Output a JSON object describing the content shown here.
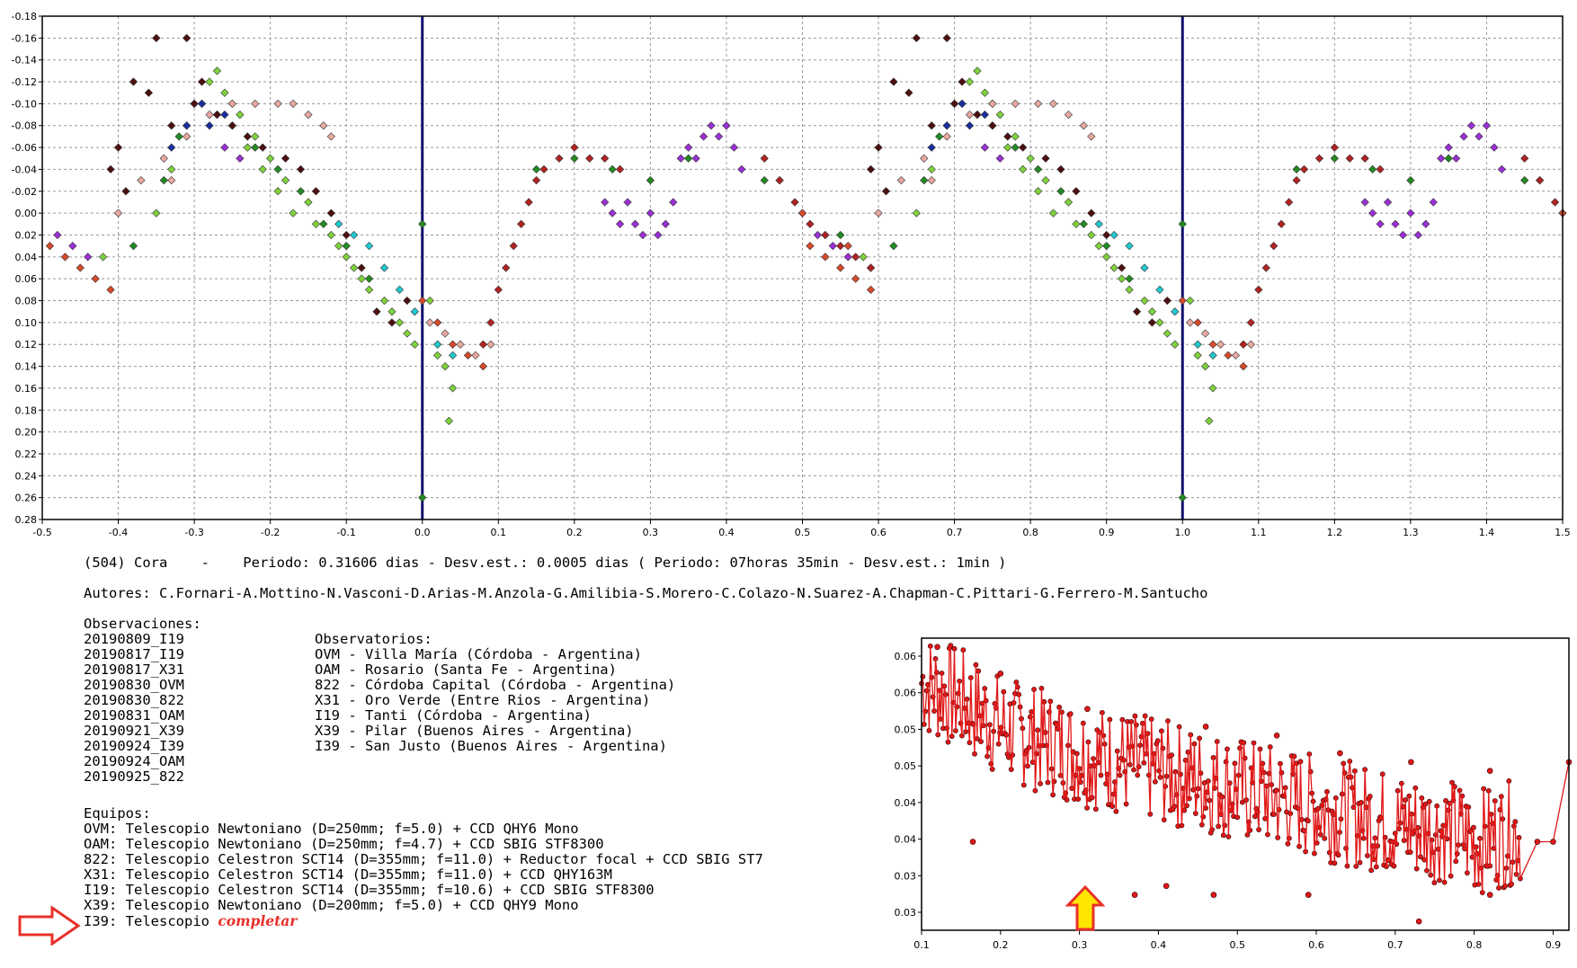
{
  "chart_data": [
    {
      "type": "scatter",
      "title": "",
      "xlabel": "",
      "ylabel": "",
      "xlim": [
        -0.5,
        1.5
      ],
      "ylim": [
        0.28,
        -0.18
      ],
      "y_inverted": true,
      "grid": true,
      "x_ticks": [
        "-0.5",
        "-0.4",
        "-0.3",
        "-0.2",
        "-0.1",
        "0.0",
        "0.1",
        "0.2",
        "0.3",
        "0.4",
        "0.5",
        "0.6",
        "0.7",
        "0.8",
        "0.9",
        "1.0",
        "1.1",
        "1.2",
        "1.3",
        "1.4",
        "1.5"
      ],
      "y_ticks": [
        "-0.18",
        "-0.16",
        "-0.14",
        "-0.12",
        "-0.10",
        "-0.08",
        "-0.06",
        "-0.04",
        "-0.02",
        "0.00",
        "0.02",
        "0.04",
        "0.06",
        "0.08",
        "0.10",
        "0.12",
        "0.14",
        "0.16",
        "0.18",
        "0.20",
        "0.22",
        "0.24",
        "0.26",
        "0.28"
      ],
      "vlines": [
        0.0,
        1.0
      ],
      "phase_period": 1.0,
      "series": [
        {
          "color": "#7fd23c",
          "points": [
            [
              -0.42,
              0.04
            ],
            [
              -0.3,
              -0.1
            ],
            [
              -0.28,
              -0.12
            ],
            [
              -0.26,
              -0.11
            ],
            [
              -0.24,
              -0.09
            ],
            [
              -0.22,
              -0.07
            ],
            [
              -0.2,
              -0.05
            ],
            [
              -0.18,
              -0.03
            ],
            [
              -0.15,
              -0.01
            ],
            [
              -0.12,
              0.02
            ],
            [
              -0.1,
              0.04
            ],
            [
              -0.08,
              0.06
            ],
            [
              -0.05,
              0.08
            ],
            [
              -0.03,
              0.1
            ],
            [
              -0.01,
              0.12
            ],
            [
              0.01,
              0.08
            ],
            [
              0.02,
              0.13
            ],
            [
              0.03,
              0.14
            ],
            [
              0.04,
              0.16
            ],
            [
              0.035,
              0.19
            ],
            [
              -0.35,
              0.0
            ],
            [
              -0.33,
              -0.04
            ],
            [
              -0.31,
              -0.08
            ],
            [
              -0.27,
              -0.13
            ],
            [
              -0.25,
              -0.1
            ],
            [
              -0.23,
              -0.06
            ],
            [
              -0.21,
              -0.04
            ],
            [
              -0.19,
              -0.02
            ],
            [
              -0.17,
              0.0
            ],
            [
              -0.14,
              0.01
            ],
            [
              -0.11,
              0.03
            ],
            [
              -0.09,
              0.05
            ],
            [
              -0.07,
              0.07
            ],
            [
              -0.04,
              0.09
            ],
            [
              -0.02,
              0.11
            ]
          ]
        },
        {
          "color": "#228b22",
          "points": [
            [
              -0.38,
              0.03
            ],
            [
              -0.34,
              -0.03
            ],
            [
              -0.32,
              -0.07
            ],
            [
              -0.29,
              -0.1
            ],
            [
              -0.27,
              -0.09
            ],
            [
              -0.25,
              -0.08
            ],
            [
              -0.22,
              -0.06
            ],
            [
              -0.19,
              -0.04
            ],
            [
              -0.16,
              -0.02
            ],
            [
              -0.13,
              0.01
            ],
            [
              -0.1,
              0.03
            ],
            [
              -0.07,
              0.06
            ],
            [
              0.0,
              0.01
            ],
            [
              0.0,
              0.26
            ],
            [
              0.15,
              -0.04
            ],
            [
              0.2,
              -0.05
            ],
            [
              0.25,
              -0.04
            ],
            [
              0.3,
              -0.03
            ],
            [
              0.35,
              -0.05
            ],
            [
              0.45,
              -0.03
            ],
            [
              0.5,
              0.0
            ],
            [
              0.55,
              0.02
            ]
          ]
        },
        {
          "color": "#4d0f0f",
          "points": [
            [
              -0.4,
              -0.06
            ],
            [
              -0.38,
              -0.12
            ],
            [
              -0.36,
              -0.11
            ],
            [
              -0.35,
              -0.16
            ],
            [
              -0.31,
              -0.16
            ],
            [
              -0.29,
              -0.12
            ],
            [
              -0.27,
              -0.09
            ],
            [
              -0.25,
              -0.08
            ],
            [
              -0.23,
              -0.07
            ],
            [
              -0.21,
              -0.06
            ],
            [
              -0.18,
              -0.05
            ],
            [
              -0.16,
              -0.04
            ],
            [
              -0.14,
              -0.02
            ],
            [
              -0.12,
              0.0
            ],
            [
              -0.1,
              0.02
            ],
            [
              -0.08,
              0.05
            ],
            [
              -0.06,
              0.09
            ],
            [
              -0.04,
              0.1
            ],
            [
              -0.02,
              0.08
            ],
            [
              -0.41,
              -0.04
            ],
            [
              -0.39,
              -0.02
            ],
            [
              -0.33,
              -0.08
            ],
            [
              -0.3,
              -0.1
            ]
          ]
        },
        {
          "color": "#e8a8a0",
          "points": [
            [
              -0.4,
              0.0
            ],
            [
              -0.37,
              -0.03
            ],
            [
              -0.34,
              -0.05
            ],
            [
              -0.31,
              -0.07
            ],
            [
              -0.28,
              -0.09
            ],
            [
              -0.25,
              -0.1
            ],
            [
              -0.22,
              -0.1
            ],
            [
              -0.19,
              -0.1
            ],
            [
              -0.17,
              -0.1
            ],
            [
              -0.15,
              -0.09
            ],
            [
              -0.13,
              -0.08
            ],
            [
              -0.12,
              -0.07
            ],
            [
              0.01,
              0.1
            ],
            [
              0.03,
              0.11
            ],
            [
              0.05,
              0.12
            ],
            [
              0.07,
              0.13
            ],
            [
              0.09,
              0.12
            ],
            [
              -0.33,
              -0.03
            ]
          ]
        },
        {
          "color": "#d84a2c",
          "points": [
            [
              -0.49,
              0.03
            ],
            [
              -0.47,
              0.04
            ],
            [
              -0.45,
              0.05
            ],
            [
              -0.43,
              0.06
            ],
            [
              -0.41,
              0.07
            ],
            [
              0.47,
              -0.03
            ],
            [
              0.5,
              0.0
            ],
            [
              0.53,
              0.02
            ],
            [
              0.56,
              0.03
            ],
            [
              0.59,
              0.05
            ],
            [
              0.0,
              0.08
            ],
            [
              0.02,
              0.1
            ],
            [
              0.04,
              0.12
            ],
            [
              0.06,
              0.13
            ],
            [
              0.08,
              0.14
            ]
          ]
        },
        {
          "color": "#b22222",
          "points": [
            [
              0.08,
              0.12
            ],
            [
              0.09,
              0.1
            ],
            [
              0.1,
              0.07
            ],
            [
              0.11,
              0.05
            ],
            [
              0.12,
              0.03
            ],
            [
              0.13,
              0.01
            ],
            [
              0.14,
              -0.01
            ],
            [
              0.15,
              -0.03
            ],
            [
              0.16,
              -0.04
            ],
            [
              0.18,
              -0.05
            ],
            [
              0.2,
              -0.06
            ],
            [
              0.22,
              -0.05
            ],
            [
              0.24,
              -0.05
            ],
            [
              0.26,
              -0.04
            ],
            [
              0.45,
              -0.05
            ],
            [
              0.47,
              -0.03
            ],
            [
              0.49,
              -0.01
            ],
            [
              0.51,
              0.01
            ],
            [
              0.53,
              0.02
            ],
            [
              0.55,
              0.03
            ],
            [
              0.57,
              0.04
            ],
            [
              0.59,
              0.05
            ]
          ]
        },
        {
          "color": "#9b30d6",
          "points": [
            [
              -0.48,
              0.02
            ],
            [
              -0.46,
              0.03
            ],
            [
              -0.44,
              0.04
            ],
            [
              -0.26,
              -0.06
            ],
            [
              -0.24,
              -0.05
            ],
            [
              0.24,
              -0.01
            ],
            [
              0.25,
              0.0
            ],
            [
              0.26,
              0.01
            ],
            [
              0.27,
              -0.01
            ],
            [
              0.28,
              0.01
            ],
            [
              0.29,
              0.02
            ],
            [
              0.3,
              0.0
            ],
            [
              0.31,
              0.02
            ],
            [
              0.32,
              0.01
            ],
            [
              0.33,
              -0.01
            ],
            [
              0.34,
              -0.05
            ],
            [
              0.35,
              -0.06
            ],
            [
              0.36,
              -0.05
            ],
            [
              0.37,
              -0.07
            ],
            [
              0.38,
              -0.08
            ],
            [
              0.39,
              -0.07
            ],
            [
              0.4,
              -0.08
            ],
            [
              0.41,
              -0.06
            ],
            [
              0.42,
              -0.04
            ]
          ]
        },
        {
          "color": "#20c8d0",
          "points": [
            [
              -0.09,
              0.02
            ],
            [
              -0.07,
              0.03
            ],
            [
              -0.05,
              0.05
            ],
            [
              -0.03,
              0.07
            ],
            [
              -0.01,
              0.09
            ],
            [
              0.02,
              0.12
            ],
            [
              0.04,
              0.13
            ],
            [
              -0.11,
              0.01
            ]
          ]
        },
        {
          "color": "#1a2fa0",
          "points": [
            [
              -0.33,
              -0.06
            ],
            [
              -0.31,
              -0.08
            ],
            [
              -0.29,
              -0.1
            ],
            [
              -0.28,
              -0.08
            ],
            [
              -0.26,
              -0.09
            ]
          ]
        }
      ]
    },
    {
      "type": "line",
      "title": "",
      "xlabel": "",
      "ylabel": "",
      "xlim": [
        0.1,
        0.92
      ],
      "ylim": [
        0.03,
        0.063
      ],
      "x_ticks": [
        "0.1",
        "0.2",
        "0.3",
        "0.4",
        "0.5",
        "0.6",
        "0.7",
        "0.8",
        "0.9"
      ],
      "y_ticks": [
        "0.06",
        "0.06",
        "0.05",
        "0.05",
        "0.04",
        "0.04",
        "0.03",
        "0.03"
      ],
      "color": "#e01818",
      "trend": [
        [
          0.1,
          0.058
        ],
        [
          0.15,
          0.056
        ],
        [
          0.2,
          0.053
        ],
        [
          0.3,
          0.05
        ],
        [
          0.4,
          0.048
        ],
        [
          0.5,
          0.046
        ],
        [
          0.6,
          0.044
        ],
        [
          0.7,
          0.042
        ],
        [
          0.78,
          0.041
        ],
        [
          0.8,
          0.04
        ],
        [
          0.85,
          0.041
        ],
        [
          0.88,
          0.04
        ],
        [
          0.9,
          0.04
        ],
        [
          0.92,
          0.049
        ]
      ],
      "peaks": [
        [
          0.12,
          0.062
        ],
        [
          0.2,
          0.059
        ],
        [
          0.31,
          0.055
        ],
        [
          0.46,
          0.053
        ],
        [
          0.55,
          0.052
        ],
        [
          0.63,
          0.05
        ],
        [
          0.72,
          0.049
        ],
        [
          0.82,
          0.048
        ]
      ],
      "dips": [
        [
          0.165,
          0.04
        ],
        [
          0.32,
          0.033
        ],
        [
          0.37,
          0.034
        ],
        [
          0.41,
          0.035
        ],
        [
          0.47,
          0.034
        ],
        [
          0.59,
          0.034
        ],
        [
          0.73,
          0.031
        ],
        [
          0.82,
          0.034
        ]
      ]
    }
  ],
  "info": {
    "line1": "(504) Cora    -    Periodo: 0.31606 dias - Desv.est.: 0.0005 dias ( Periodo: 07horas 35min - Desv.est.: 1min )",
    "line2": "Autores: C.Fornari-A.Mottino-N.Vasconi-D.Arias-M.Anzola-G.Amilibia-S.Morero-C.Colazo-N.Suarez-A.Chapman-C.Pittari-G.Ferrero-M.Santucho"
  },
  "observaciones": {
    "heading": "Observaciones:",
    "items": [
      "20190809_I19",
      "20190817_I19",
      "20190817_X31",
      "20190830_OVM",
      "20190830_822",
      "20190831_OAM",
      "20190921_X39",
      "20190924_I39",
      "20190924_OAM",
      "20190925_822"
    ]
  },
  "observatorios": {
    "heading": "Observatorios:",
    "items": [
      "OVM - Villa María (Córdoba - Argentina)",
      "OAM - Rosario (Santa Fe - Argentina)",
      "822 - Córdoba Capital (Córdoba - Argentina)",
      "X31 - Oro Verde (Entre Rios - Argentina)",
      "I19 - Tanti (Córdoba - Argentina)",
      "X39 - Pilar (Buenos Aires - Argentina)",
      "I39 - San Justo (Buenos Aires - Argentina)"
    ]
  },
  "equipos": {
    "heading": "Equipos:",
    "items": [
      "OVM: Telescopio Newtoniano (D=250mm; f=5.0) + CCD QHY6 Mono",
      "OAM: Telescopio Newtoniano (D=250mm; f=4.7) + CCD SBIG STF8300",
      "822: Telescopio Celestron SCT14 (D=355mm; f=11.0) + Reductor focal + CCD SBIG ST7",
      "X31: Telescopio Celestron SCT14 (D=355mm; f=11.0) + CCD QHY163M",
      "I19: Telescopio Celestron SCT14 (D=355mm; f=10.6) + CCD SBIG STF8300",
      "X39: Telescopio Newtoniano (D=200mm; f=5.0) + CCD QHY9 Mono"
    ],
    "last_prefix": "I39: Telescopio ",
    "last_note": "completar"
  },
  "colors": {
    "vline": "#10106e",
    "annotation_red": "#e8302a",
    "arrow_yellow": "#ffe600",
    "grid": "#9a9a9a"
  }
}
